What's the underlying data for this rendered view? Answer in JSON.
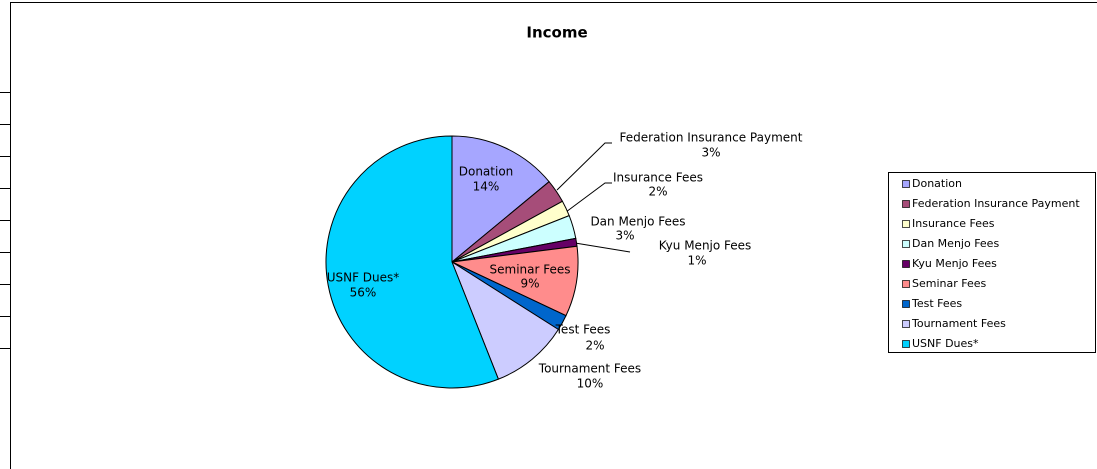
{
  "chart_data": {
    "type": "pie",
    "title": "Income",
    "categories": [
      "Donation",
      "Federation Insurance Payment",
      "Insurance Fees",
      "Dan Menjo Fees",
      "Kyu Menjo Fees",
      "Seminar Fees",
      "Test Fees",
      "Tournament Fees",
      "USNF Dues*"
    ],
    "values": [
      14,
      3,
      2,
      3,
      1,
      9,
      2,
      10,
      56
    ],
    "value_labels": [
      "14%",
      "3%",
      "2%",
      "3%",
      "1%",
      "9%",
      "2%",
      "10%",
      "56%"
    ],
    "colors": [
      "#a6a6ff",
      "#a64d79",
      "#ffffcc",
      "#ccffff",
      "#660066",
      "#ff8c8c",
      "#0066cc",
      "#ccccff",
      "#00d2ff"
    ],
    "legend": "right"
  }
}
